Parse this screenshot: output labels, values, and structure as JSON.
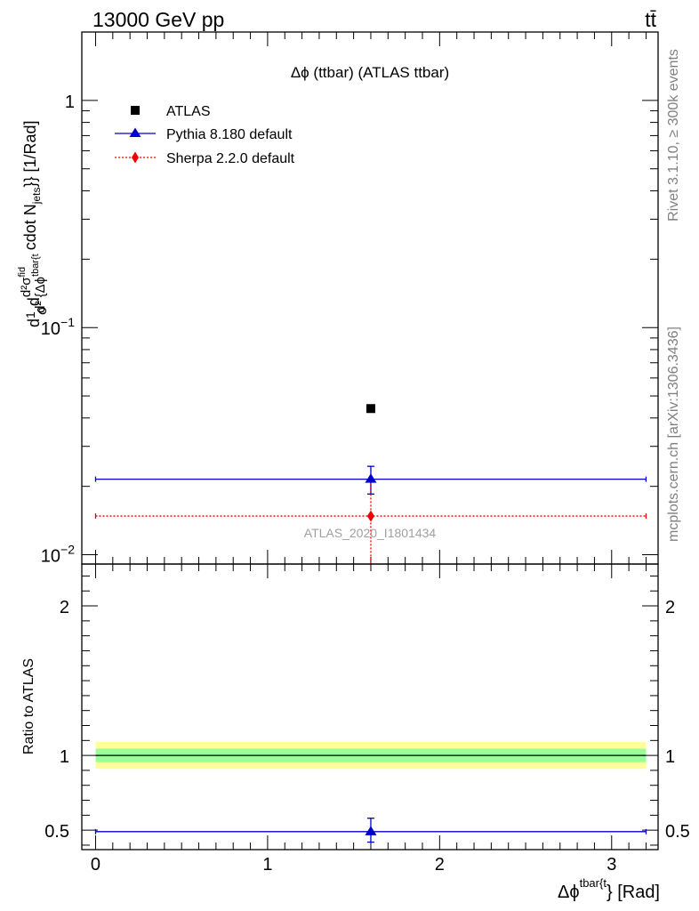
{
  "header": {
    "left": "13000 GeV pp",
    "right": "tt̄"
  },
  "side_labels": {
    "top": "Rivet 3.1.10, ≥ 300k events",
    "bottom": "mcplots.cern.ch [arXiv:1306.3436]"
  },
  "chart_data": [
    {
      "type": "scatter",
      "title": "Δϕ (ttbar) (ATLAS ttbar)",
      "ylabel": "d1/σ d d²σ^fid / d² {Δϕ^tbar{t} cdot N_jets}} [1/Rad]",
      "ylabel_parts": {
        "d1": "d",
        "one": "1",
        "sigma": "σ",
        "d2": "d",
        "num": "d²σ",
        "num_sup": "fid",
        "den": "d² {Δϕ",
        "den_sup": "tbar{t",
        "tail": "cdot N",
        "jets": "jets",
        "tail2": "}} [1/Rad]"
      },
      "yscale": "log",
      "ylim": [
        0.0091,
        2.0
      ],
      "xlim": [
        -0.08,
        3.27
      ],
      "y_ticks": [
        {
          "value": 1,
          "label": "1"
        },
        {
          "value": 0.1,
          "label": "10",
          "exp": "−1"
        },
        {
          "value": 0.01,
          "label": "10",
          "exp": "−2"
        }
      ],
      "legend": [
        {
          "name": "ATLAS",
          "marker": "square",
          "color": "#000000"
        },
        {
          "name": "Pythia 8.180 default",
          "marker": "triangle",
          "color": "#0000cc"
        },
        {
          "name": "Sherpa 2.2.0 default",
          "marker": "diamond",
          "color": "#ee0000"
        }
      ],
      "legend_position": "top-left",
      "watermark": "ATLAS_2020_I1801434",
      "series": [
        {
          "name": "ATLAS",
          "x": 1.6,
          "y": 0.044,
          "xerr": [
            1.6,
            1.6
          ],
          "yerr": [
            0.0,
            0.0
          ]
        },
        {
          "name": "Pythia 8.180 default",
          "x": 1.6,
          "y": 0.0215,
          "xerr": [
            1.6,
            1.6
          ],
          "yerr": [
            0.003,
            0.003
          ]
        },
        {
          "name": "Sherpa 2.2.0 default",
          "x": 1.6,
          "y": 0.0148,
          "xerr": [
            1.6,
            1.6
          ],
          "yerr": [
            0.0065,
            0.0058
          ]
        }
      ]
    },
    {
      "type": "scatter",
      "ylabel": "Ratio to ATLAS",
      "xlabel": "Δϕ",
      "xlabel_sup": "tbar{t",
      "xlabel_tail": "} [Rad]",
      "ylim": [
        0.37,
        2.28
      ],
      "xlim": [
        -0.08,
        3.27
      ],
      "x_ticks": [
        "0",
        "1",
        "2",
        "3"
      ],
      "y_ticks": [
        "0.5",
        "1",
        "2"
      ],
      "bands": [
        {
          "name": "stat+syst",
          "low": 0.91,
          "high": 1.09,
          "color": "#ffff99"
        },
        {
          "name": "stat",
          "low": 0.955,
          "high": 1.045,
          "color": "#99ff99"
        }
      ],
      "reference_line": 1.0,
      "series": [
        {
          "name": "Pythia 8.180 default",
          "x": 1.6,
          "y": 0.49,
          "xerr": [
            1.6,
            1.6
          ],
          "yerr": [
            0.07,
            0.09
          ]
        }
      ]
    }
  ]
}
